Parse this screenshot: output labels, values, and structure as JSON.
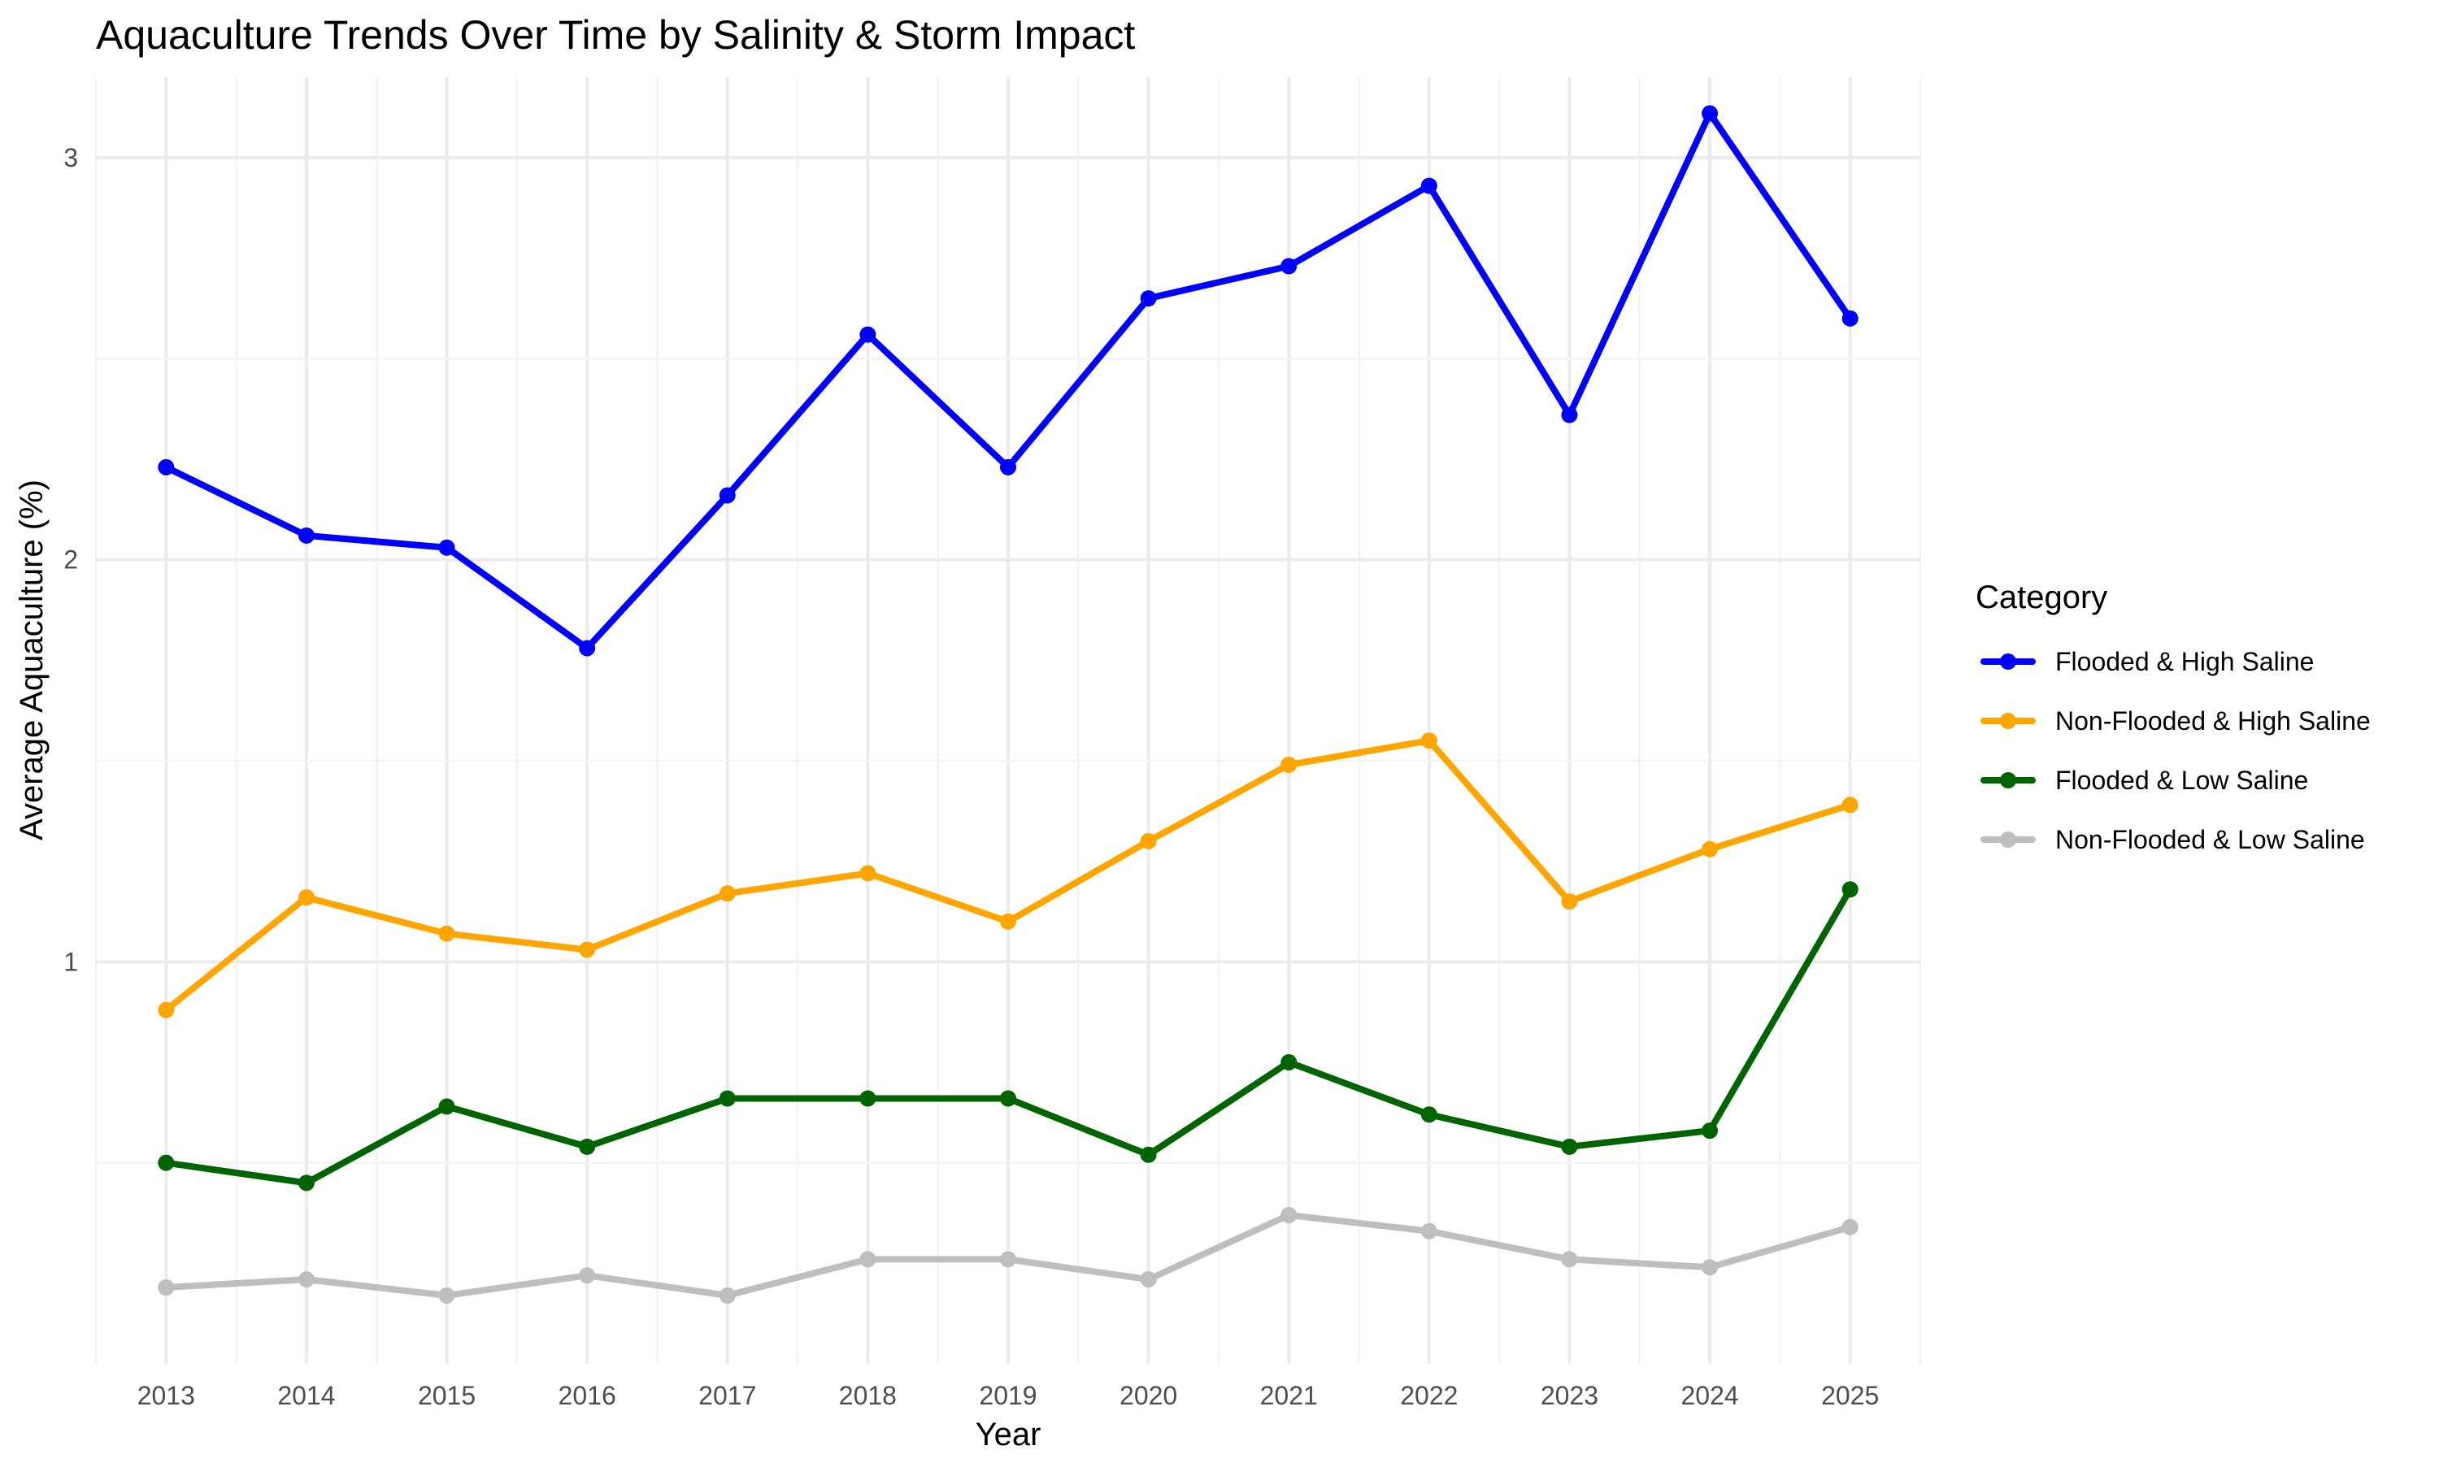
{
  "chart_data": {
    "type": "line",
    "title": "Aquaculture Trends Over Time by Salinity & Storm Impact",
    "xlabel": "Year",
    "ylabel": "Average Aquaculture (%)",
    "x": [
      2013,
      2014,
      2015,
      2016,
      2017,
      2018,
      2019,
      2020,
      2021,
      2022,
      2023,
      2024,
      2025
    ],
    "xlim": [
      2012.5,
      2025.5
    ],
    "ylim": [
      0.0,
      3.2
    ],
    "yticks": [
      1,
      2,
      3
    ],
    "grid": true,
    "legend_title": "Category",
    "legend_position": "right",
    "series": [
      {
        "name": "Flooded & High Saline",
        "color": "#0000FF",
        "values": [
          2.23,
          2.06,
          2.03,
          1.78,
          2.16,
          2.56,
          2.23,
          2.65,
          2.73,
          2.93,
          2.36,
          3.11,
          2.6
        ]
      },
      {
        "name": "Non-Flooded & High Saline",
        "color": "#FFA500",
        "values": [
          0.88,
          1.16,
          1.07,
          1.03,
          1.17,
          1.22,
          1.1,
          1.3,
          1.49,
          1.55,
          1.15,
          1.28,
          1.39
        ]
      },
      {
        "name": "Flooded & Low Saline",
        "color": "#006400",
        "values": [
          0.5,
          0.45,
          0.64,
          0.54,
          0.66,
          0.66,
          0.66,
          0.52,
          0.75,
          0.62,
          0.54,
          0.58,
          1.18
        ]
      },
      {
        "name": "Non-Flooded & Low Saline",
        "color": "#BEBEBE",
        "values": [
          0.19,
          0.21,
          0.17,
          0.22,
          0.17,
          0.26,
          0.26,
          0.21,
          0.37,
          0.33,
          0.26,
          0.24,
          0.34
        ]
      }
    ]
  }
}
